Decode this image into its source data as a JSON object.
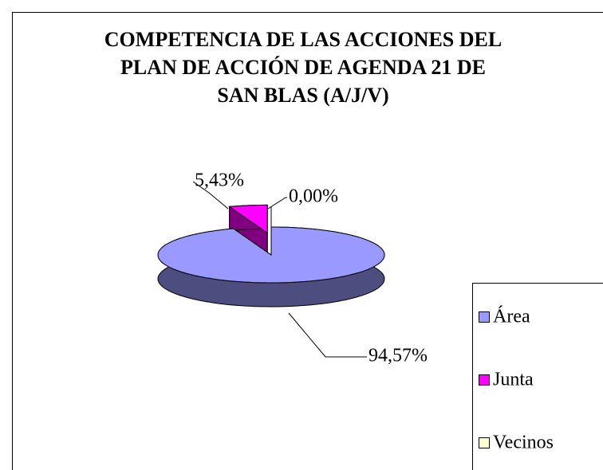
{
  "chart_data": {
    "type": "pie3d",
    "title": "COMPETENCIA DE LAS ACCIONES DEL\nPLAN DE ACCIÓN DE AGENDA 21 DE\nSAN BLAS (A/J/V)",
    "categories": [
      "Área",
      "Junta",
      "Vecinos"
    ],
    "values": [
      94.57,
      5.43,
      0.0
    ],
    "value_labels": [
      "94,57%",
      "5,43%",
      "0,00%"
    ],
    "colors": [
      "#9999ff",
      "#ff00ff",
      "#ffffcc"
    ],
    "side_colors": [
      "#4d4d80",
      "#800080",
      "#99997a"
    ],
    "legend": "right"
  }
}
